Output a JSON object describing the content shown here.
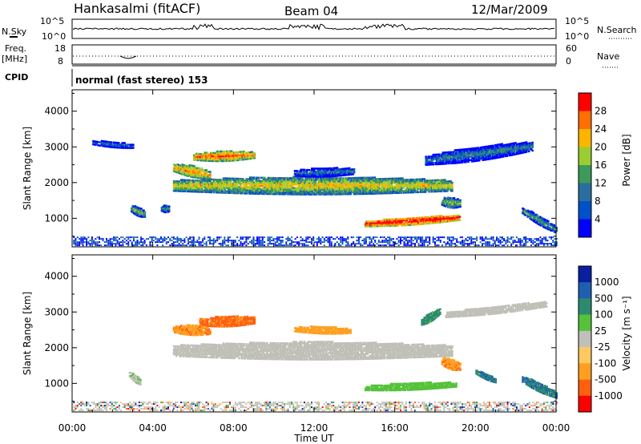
{
  "header": {
    "station": "Hankasalmi (fitACF)",
    "beam": "Beam 04",
    "date": "12/Mar/2009"
  },
  "aux": {
    "nsky_label": "N.Sky",
    "nsky_ticks": [
      "10^5",
      "10^0"
    ],
    "nsearch_label": "N.Search",
    "nsearch_ticks": [
      "10^5",
      "10^0"
    ],
    "freq_label": "Freq.",
    "freq_unit": "[MHz]",
    "freq_ticks": [
      "18",
      "8"
    ],
    "nave_label": "Nave",
    "nave_ticks": [
      "60",
      "0"
    ],
    "cpid_label": "CPID",
    "cpid_text": "normal (fast stereo) 153"
  },
  "chart_data": [
    {
      "type": "heatmap",
      "quantity": "Power",
      "ylabel": "Slant Range [km]",
      "ylim": [
        200,
        4600
      ],
      "yticks": [
        1000,
        2000,
        3000,
        4000
      ],
      "xlim": [
        0,
        24
      ],
      "xticks": [
        "00:00",
        "04:00",
        "08:00",
        "12:00",
        "16:00",
        "20:00",
        "00:00"
      ],
      "colorbar": {
        "label": "Power [dB]",
        "ticks": [
          4,
          8,
          12,
          16,
          20,
          24,
          28
        ],
        "range": [
          0,
          32
        ],
        "colors": [
          "#0000ff",
          "#0050c8",
          "#2a6e9e",
          "#3c9a5a",
          "#9acd32",
          "#ffb400",
          "#ff6e00",
          "#ff0000"
        ]
      },
      "features": [
        {
          "t0": 5.0,
          "t1": 18.8,
          "r_start": 1900,
          "r_end": 1900,
          "h": 500,
          "power": 16
        },
        {
          "t0": 14.5,
          "t1": 19.2,
          "r_start": 820,
          "r_end": 1000,
          "h": 220,
          "power": 27
        },
        {
          "t0": 6.0,
          "t1": 9.0,
          "r_start": 2700,
          "r_end": 2750,
          "h": 280,
          "power": 22
        },
        {
          "t0": 5.0,
          "t1": 6.8,
          "r_start": 2400,
          "r_end": 2200,
          "h": 320,
          "power": 20
        },
        {
          "t0": 11.0,
          "t1": 14.0,
          "r_start": 2250,
          "r_end": 2300,
          "h": 250,
          "power": 6
        },
        {
          "t0": 17.5,
          "t1": 22.8,
          "r_start": 2600,
          "r_end": 3000,
          "h": 400,
          "power": 6
        },
        {
          "t0": 18.3,
          "t1": 19.2,
          "r_start": 1450,
          "r_end": 1400,
          "h": 300,
          "power": 13
        },
        {
          "t0": 2.9,
          "t1": 3.6,
          "r_start": 1250,
          "r_end": 1100,
          "h": 260,
          "power": 12
        },
        {
          "t0": 4.4,
          "t1": 4.8,
          "r_start": 1250,
          "r_end": 1250,
          "h": 200,
          "power": 9
        },
        {
          "t0": 22.3,
          "t1": 24.0,
          "r_start": 1200,
          "r_end": 650,
          "h": 260,
          "power": 10
        },
        {
          "t0": 1.0,
          "t1": 3.0,
          "r_start": 3100,
          "r_end": 3000,
          "h": 160,
          "power": 5
        }
      ]
    },
    {
      "type": "heatmap",
      "quantity": "Velocity",
      "ylabel": "Slant Range [km]",
      "ylim": [
        200,
        4600
      ],
      "yticks": [
        1000,
        2000,
        3000,
        4000
      ],
      "xlim": [
        0,
        24
      ],
      "xticks": [
        "00:00",
        "04:00",
        "08:00",
        "12:00",
        "16:00",
        "20:00",
        "00:00"
      ],
      "xlabel": "Time UT",
      "colorbar": {
        "label": "Velocity [m s⁻¹]",
        "ticks": [
          "1000",
          "500",
          "100",
          "25",
          "-25",
          "-100",
          "-500",
          "-1000"
        ],
        "colors": [
          "#0a1fa0",
          "#1f5fb0",
          "#2e8a6e",
          "#55c23a",
          "#c0c0b8",
          "#ffc860",
          "#ff9f20",
          "#ff6010",
          "#ff0000"
        ]
      },
      "features": [
        {
          "t0": 5.0,
          "t1": 18.8,
          "r_start": 1900,
          "r_end": 1900,
          "h": 500,
          "vel": 0
        },
        {
          "t0": 6.3,
          "t1": 9.0,
          "r_start": 2700,
          "r_end": 2750,
          "h": 300,
          "vel": -650
        },
        {
          "t0": 5.0,
          "t1": 6.8,
          "r_start": 2500,
          "r_end": 2450,
          "h": 280,
          "vel": -400
        },
        {
          "t0": 11.0,
          "t1": 13.8,
          "r_start": 2500,
          "r_end": 2450,
          "h": 200,
          "vel": -300
        },
        {
          "t0": 17.3,
          "t1": 18.2,
          "r_start": 2700,
          "r_end": 3000,
          "h": 260,
          "vel": 150
        },
        {
          "t0": 18.3,
          "t1": 19.2,
          "r_start": 1600,
          "r_end": 1450,
          "h": 300,
          "vel": -400
        },
        {
          "t0": 14.5,
          "t1": 19.0,
          "r_start": 850,
          "r_end": 950,
          "h": 200,
          "vel": 60
        },
        {
          "t0": 18.5,
          "t1": 23.5,
          "r_start": 2900,
          "r_end": 3200,
          "h": 220,
          "vel": 0
        },
        {
          "t0": 20.0,
          "t1": 21.0,
          "r_start": 1300,
          "r_end": 1050,
          "h": 160,
          "vel": 500
        },
        {
          "t0": 22.3,
          "t1": 24.0,
          "r_start": 1100,
          "r_end": 650,
          "h": 260,
          "vel": 500
        },
        {
          "t0": 2.8,
          "t1": 3.4,
          "r_start": 1250,
          "r_end": 1000,
          "h": 220,
          "vel": 20
        }
      ]
    }
  ]
}
